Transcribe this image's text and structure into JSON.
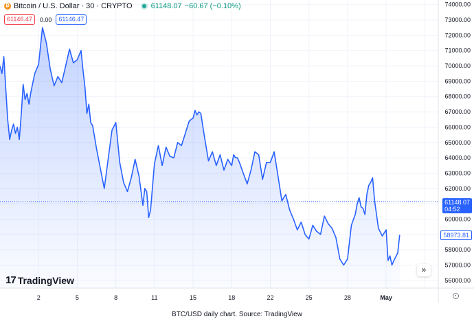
{
  "header": {
    "title": "Bitcoin / U.S. Dollar · 30 · CRYPTO",
    "last": "61148.07",
    "change": "−60.67 (−0.10%)",
    "bid": "61146.47",
    "spread": "0.00",
    "ask": "61146.47"
  },
  "brand": {
    "logo_mark": "17",
    "logo_text": "TradingView"
  },
  "price_tags": {
    "current_price": "61148.07",
    "countdown": "04:52",
    "reference_price": "58973.81"
  },
  "controls": {
    "expand_glyph": "»"
  },
  "caption": "BTC/USD daily chart. Source: TradingView",
  "chart_data": {
    "type": "area",
    "title": "Bitcoin / U.S. Dollar · 30 · CRYPTO",
    "xlabel": "",
    "ylabel": "",
    "ylim": [
      55500,
      74300
    ],
    "xlim": [
      1.0,
      12.35
    ],
    "y_ticks": [
      56000,
      57000,
      58000,
      59000,
      60000,
      61000,
      62000,
      63000,
      64000,
      65000,
      66000,
      67000,
      68000,
      69000,
      70000,
      71000,
      72000,
      73000,
      74000
    ],
    "y_tick_labels": [
      "56000.00",
      "57000.00",
      "58000.00",
      "59000.00",
      "60000.00",
      "61000.00",
      "62000.00",
      "63000.00",
      "64000.00",
      "65000.00",
      "66000.00",
      "67000.00",
      "68000.00",
      "69000.00",
      "70000.00",
      "71000.00",
      "72000.00",
      "73000.00",
      "74000.00"
    ],
    "x_ticks": [
      2,
      3,
      4,
      5,
      6,
      7,
      8,
      9,
      10,
      11,
      12
    ],
    "x_tick_labels": [
      "2",
      "5",
      "8",
      "11",
      "15",
      "18",
      "22",
      "25",
      "28",
      "May",
      ""
    ],
    "grid": true,
    "line_color": "#2962ff",
    "fill_color": "#2962ff",
    "current_price_line": 61148.07,
    "series": [
      {
        "x": [
          1.0,
          1.05,
          1.1,
          1.15,
          1.2,
          1.25,
          1.3,
          1.35,
          1.4,
          1.45,
          1.5,
          1.55,
          1.6,
          1.65,
          1.7,
          1.75,
          1.8,
          1.9,
          2.0,
          2.1,
          2.2,
          2.3,
          2.4,
          2.5,
          2.6,
          2.7,
          2.8,
          2.9,
          3.0,
          3.05,
          3.1,
          3.15,
          3.2,
          3.25,
          3.3,
          3.35,
          3.4,
          3.5,
          3.6,
          3.7,
          3.8,
          3.9,
          4.0,
          4.1,
          4.2,
          4.3,
          4.4,
          4.5,
          4.6,
          4.7,
          4.75,
          4.8,
          4.85,
          4.9,
          5.0,
          5.1,
          5.2,
          5.3,
          5.4,
          5.5,
          5.6,
          5.7,
          5.8,
          5.9,
          6.0,
          6.05,
          6.1,
          6.15,
          6.2,
          6.3,
          6.4,
          6.5,
          6.6,
          6.7,
          6.8,
          6.9,
          7.0,
          7.05,
          7.1,
          7.15,
          7.2,
          7.3,
          7.4,
          7.5,
          7.6,
          7.7,
          7.8,
          7.9,
          8.0,
          8.1,
          8.2,
          8.3,
          8.4,
          8.5,
          8.6,
          8.7,
          8.8,
          8.9,
          9.0,
          9.1,
          9.2,
          9.3,
          9.4,
          9.5,
          9.6,
          9.7,
          9.8,
          9.9,
          10.0,
          10.1,
          10.2,
          10.25,
          10.3,
          10.35,
          10.4,
          10.45,
          10.5,
          10.55,
          10.6,
          10.65,
          10.7,
          10.8,
          10.9,
          11.0,
          11.05,
          11.1,
          11.15,
          11.2,
          11.3,
          11.35
        ],
        "values": [
          70000,
          69500,
          70600,
          68500,
          66500,
          65200,
          65800,
          66200,
          65600,
          66000,
          65200,
          66800,
          68800,
          67800,
          68200,
          67500,
          68300,
          69500,
          70100,
          72500,
          71500,
          69800,
          68700,
          69300,
          68900,
          70000,
          71100,
          70200,
          70400,
          70700,
          71000,
          69700,
          68600,
          66900,
          67500,
          66300,
          66100,
          64600,
          63300,
          62000,
          63900,
          65800,
          66300,
          63700,
          62400,
          61800,
          62700,
          63900,
          62800,
          60900,
          62000,
          61800,
          60100,
          60600,
          63600,
          64800,
          63500,
          64700,
          64100,
          64000,
          65000,
          64800,
          65600,
          66400,
          66600,
          67100,
          66800,
          67000,
          66900,
          65300,
          63800,
          64400,
          63500,
          64200,
          63200,
          63900,
          63500,
          64200,
          64000,
          64000,
          63700,
          63000,
          62300,
          63200,
          64400,
          64200,
          62600,
          63700,
          63700,
          64400,
          62800,
          61200,
          61600,
          60600,
          60000,
          59300,
          59800,
          59000,
          58700,
          59600,
          59200,
          59000,
          60200,
          59700,
          59400,
          58800,
          57400,
          57000,
          57400,
          59600,
          60300,
          61000,
          61400,
          60800,
          60700,
          60300,
          61600,
          62200,
          62400,
          62700,
          61200,
          59400,
          58900,
          59300,
          57300,
          57600,
          57000,
          57300,
          57800,
          58973.81
        ]
      }
    ]
  }
}
